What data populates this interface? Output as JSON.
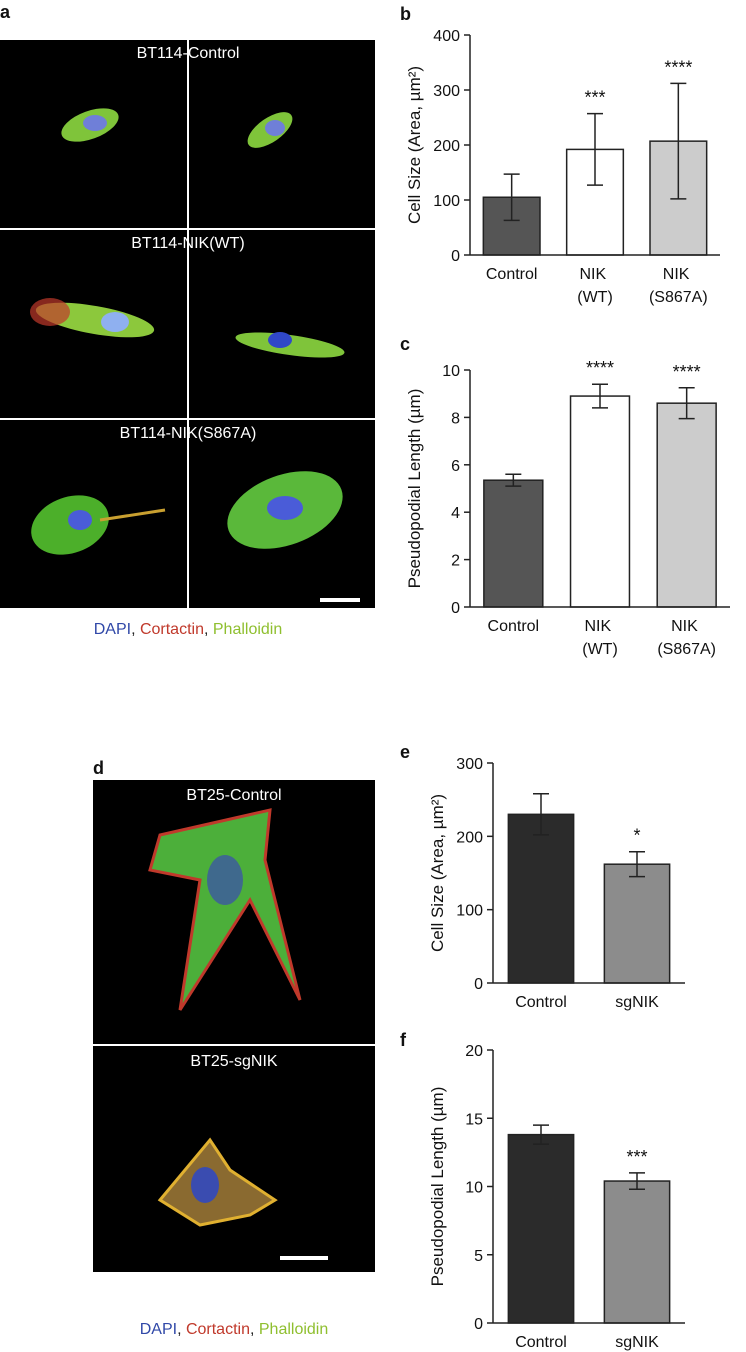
{
  "images": [
    {
      "panel": "a",
      "labels": [
        "BT114-Control",
        "BT114-NIK(WT)",
        "BT114-NIK(S867A)"
      ],
      "legend": [
        "DAPI",
        ", ",
        "Cortactin",
        ", ",
        "Phalloidin"
      ]
    },
    {
      "panel": "d",
      "labels": [
        "BT25-Control",
        "BT25-sgNIK"
      ],
      "legend": [
        "DAPI",
        ", ",
        "Cortactin",
        ", ",
        "Phalloidin"
      ]
    }
  ],
  "chart_data": [
    {
      "type": "bar",
      "panel": "b",
      "y_label": "Cell Size (Area, µm²)",
      "categories": [
        "Control",
        "NIK (WT)",
        "NIK (S867A)"
      ],
      "values": [
        105,
        192,
        207
      ],
      "errors": [
        42,
        65,
        105
      ],
      "annotations": [
        null,
        "***",
        "****"
      ],
      "colors": [
        "#555555",
        "#ffffff",
        "#cccccc"
      ],
      "ylim": [
        0,
        400
      ],
      "yticks": [
        0,
        100,
        200,
        300,
        400
      ]
    },
    {
      "type": "bar",
      "panel": "c",
      "y_label": "Pseudopodial Length (µm)",
      "categories": [
        "Control",
        "NIK (WT)",
        "NIK (S867A)"
      ],
      "values": [
        5.35,
        8.9,
        8.6
      ],
      "errors": [
        0.25,
        0.5,
        0.65
      ],
      "annotations": [
        null,
        "****",
        "****"
      ],
      "colors": [
        "#555555",
        "#ffffff",
        "#cccccc"
      ],
      "ylim": [
        0,
        10
      ],
      "yticks": [
        0,
        2,
        4,
        6,
        8,
        10
      ]
    },
    {
      "type": "bar",
      "panel": "e",
      "y_label": "Cell Size (Area, µm²)",
      "categories": [
        "Control",
        "sgNIK"
      ],
      "values": [
        230,
        162
      ],
      "errors": [
        28,
        17
      ],
      "annotations": [
        null,
        "*"
      ],
      "colors": [
        "#2b2b2b",
        "#8c8c8c"
      ],
      "ylim": [
        0,
        300
      ],
      "yticks": [
        0,
        100,
        200,
        300
      ]
    },
    {
      "type": "bar",
      "panel": "f",
      "y_label": "Pseudopodial Length (µm)",
      "categories": [
        "Control",
        "sgNIK"
      ],
      "values": [
        13.8,
        10.4
      ],
      "errors": [
        0.7,
        0.6
      ],
      "annotations": [
        null,
        "***"
      ],
      "colors": [
        "#2b2b2b",
        "#8c8c8c"
      ],
      "ylim": [
        0,
        20
      ],
      "yticks": [
        0,
        5,
        10,
        15,
        20
      ]
    }
  ]
}
